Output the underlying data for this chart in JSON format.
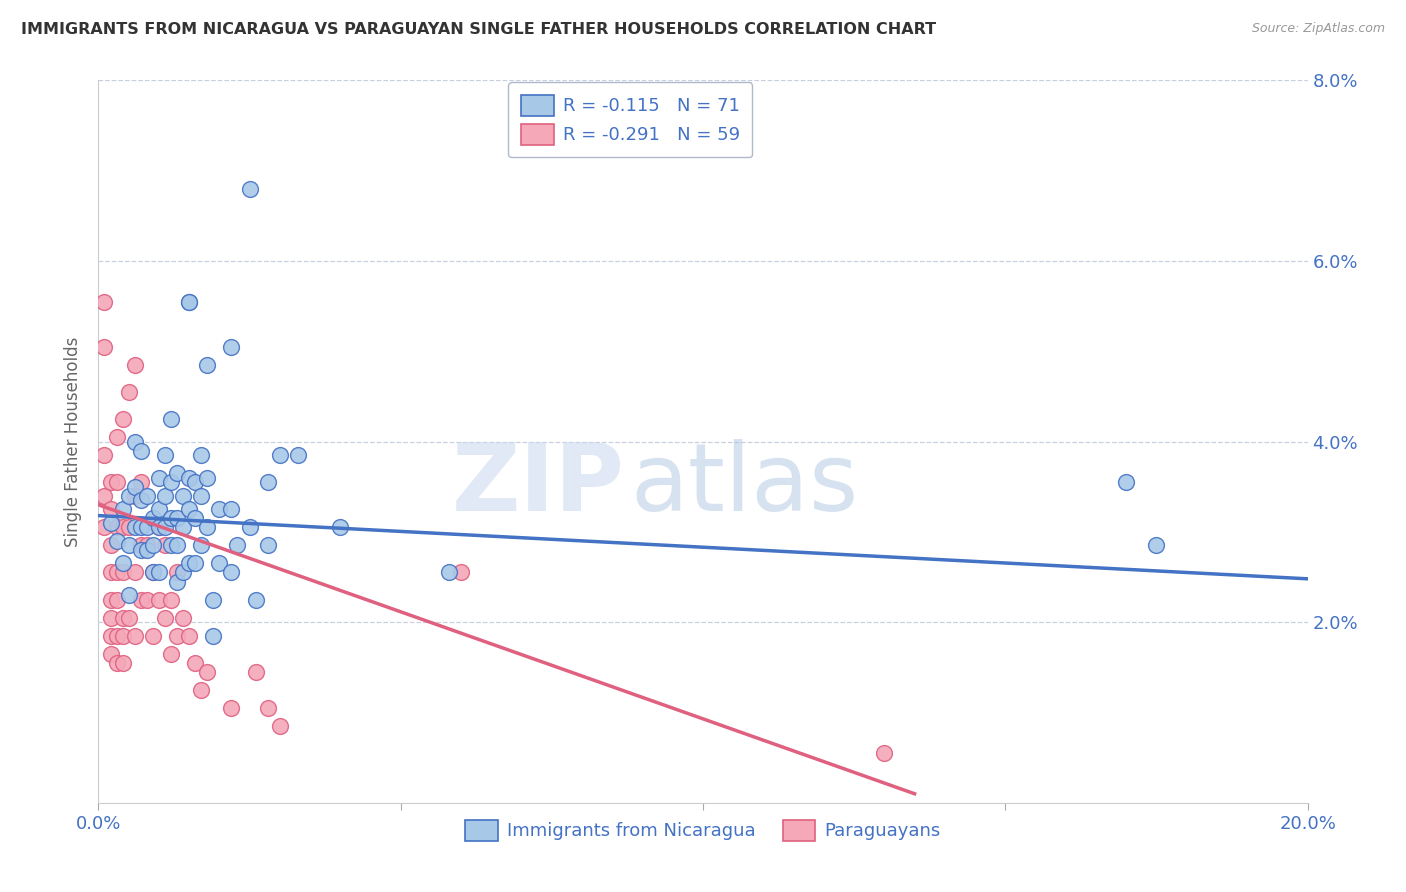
{
  "title": "IMMIGRANTS FROM NICARAGUA VS PARAGUAYAN SINGLE FATHER HOUSEHOLDS CORRELATION CHART",
  "source": "Source: ZipAtlas.com",
  "ylabel": "Single Father Households",
  "x_min": 0.0,
  "x_max": 0.2,
  "y_min": 0.0,
  "y_max": 0.08,
  "x_ticks": [
    0.0,
    0.05,
    0.1,
    0.15,
    0.2
  ],
  "x_tick_labels": [
    "0.0%",
    "",
    "",
    "",
    "20.0%"
  ],
  "y_ticks": [
    0.0,
    0.02,
    0.04,
    0.06,
    0.08
  ],
  "y_tick_labels_right": [
    "",
    "2.0%",
    "4.0%",
    "6.0%",
    "8.0%"
  ],
  "legend_label_blue": "Immigrants from Nicaragua",
  "legend_label_pink": "Paraguayans",
  "legend_R_blue": "R = -0.115",
  "legend_N_blue": "N = 71",
  "legend_R_pink": "R = -0.291",
  "legend_N_pink": "N = 59",
  "color_blue": "#a8c8e8",
  "color_pink": "#f4a8b8",
  "color_blue_line": "#4472c4",
  "color_pink_line": "#e06080",
  "color_axis_labels": "#4472c4",
  "color_grid": "#c8d0e0",
  "watermark_zip": "ZIP",
  "watermark_atlas": "atlas",
  "blue_scatter": [
    [
      0.002,
      0.031
    ],
    [
      0.003,
      0.029
    ],
    [
      0.004,
      0.0325
    ],
    [
      0.004,
      0.0265
    ],
    [
      0.005,
      0.034
    ],
    [
      0.005,
      0.0285
    ],
    [
      0.005,
      0.023
    ],
    [
      0.006,
      0.04
    ],
    [
      0.006,
      0.035
    ],
    [
      0.006,
      0.0305
    ],
    [
      0.007,
      0.039
    ],
    [
      0.007,
      0.0335
    ],
    [
      0.007,
      0.0305
    ],
    [
      0.007,
      0.028
    ],
    [
      0.008,
      0.034
    ],
    [
      0.008,
      0.0305
    ],
    [
      0.008,
      0.028
    ],
    [
      0.009,
      0.0315
    ],
    [
      0.009,
      0.0285
    ],
    [
      0.009,
      0.0255
    ],
    [
      0.01,
      0.036
    ],
    [
      0.01,
      0.0325
    ],
    [
      0.01,
      0.0305
    ],
    [
      0.01,
      0.0255
    ],
    [
      0.011,
      0.0385
    ],
    [
      0.011,
      0.034
    ],
    [
      0.011,
      0.0305
    ],
    [
      0.012,
      0.0425
    ],
    [
      0.012,
      0.0355
    ],
    [
      0.012,
      0.0315
    ],
    [
      0.012,
      0.0285
    ],
    [
      0.013,
      0.0365
    ],
    [
      0.013,
      0.0315
    ],
    [
      0.013,
      0.0285
    ],
    [
      0.013,
      0.0245
    ],
    [
      0.014,
      0.034
    ],
    [
      0.014,
      0.0305
    ],
    [
      0.014,
      0.0255
    ],
    [
      0.015,
      0.0555
    ],
    [
      0.015,
      0.0555
    ],
    [
      0.015,
      0.036
    ],
    [
      0.015,
      0.0325
    ],
    [
      0.015,
      0.0265
    ],
    [
      0.016,
      0.0355
    ],
    [
      0.016,
      0.0315
    ],
    [
      0.016,
      0.0265
    ],
    [
      0.017,
      0.0385
    ],
    [
      0.017,
      0.034
    ],
    [
      0.017,
      0.0285
    ],
    [
      0.018,
      0.0485
    ],
    [
      0.018,
      0.036
    ],
    [
      0.018,
      0.0305
    ],
    [
      0.019,
      0.0225
    ],
    [
      0.019,
      0.0185
    ],
    [
      0.02,
      0.0325
    ],
    [
      0.02,
      0.0265
    ],
    [
      0.022,
      0.0505
    ],
    [
      0.022,
      0.0325
    ],
    [
      0.022,
      0.0255
    ],
    [
      0.023,
      0.0285
    ],
    [
      0.025,
      0.068
    ],
    [
      0.025,
      0.0305
    ],
    [
      0.026,
      0.0225
    ],
    [
      0.028,
      0.0355
    ],
    [
      0.028,
      0.0285
    ],
    [
      0.03,
      0.0385
    ],
    [
      0.033,
      0.0385
    ],
    [
      0.04,
      0.0305
    ],
    [
      0.058,
      0.0255
    ],
    [
      0.17,
      0.0355
    ],
    [
      0.175,
      0.0285
    ]
  ],
  "pink_scatter": [
    [
      0.001,
      0.0555
    ],
    [
      0.001,
      0.0505
    ],
    [
      0.001,
      0.0385
    ],
    [
      0.001,
      0.034
    ],
    [
      0.001,
      0.0305
    ],
    [
      0.002,
      0.0355
    ],
    [
      0.002,
      0.0325
    ],
    [
      0.002,
      0.0285
    ],
    [
      0.002,
      0.0255
    ],
    [
      0.002,
      0.0225
    ],
    [
      0.002,
      0.0205
    ],
    [
      0.002,
      0.0185
    ],
    [
      0.002,
      0.0165
    ],
    [
      0.003,
      0.0405
    ],
    [
      0.003,
      0.0355
    ],
    [
      0.003,
      0.0305
    ],
    [
      0.003,
      0.0255
    ],
    [
      0.003,
      0.0225
    ],
    [
      0.003,
      0.0185
    ],
    [
      0.003,
      0.0155
    ],
    [
      0.004,
      0.0425
    ],
    [
      0.004,
      0.0305
    ],
    [
      0.004,
      0.0255
    ],
    [
      0.004,
      0.0205
    ],
    [
      0.004,
      0.0185
    ],
    [
      0.004,
      0.0155
    ],
    [
      0.005,
      0.0455
    ],
    [
      0.005,
      0.0305
    ],
    [
      0.005,
      0.0205
    ],
    [
      0.006,
      0.0485
    ],
    [
      0.006,
      0.034
    ],
    [
      0.006,
      0.0255
    ],
    [
      0.006,
      0.0185
    ],
    [
      0.007,
      0.0355
    ],
    [
      0.007,
      0.0285
    ],
    [
      0.007,
      0.0225
    ],
    [
      0.008,
      0.0285
    ],
    [
      0.008,
      0.0225
    ],
    [
      0.009,
      0.0255
    ],
    [
      0.009,
      0.0185
    ],
    [
      0.01,
      0.0305
    ],
    [
      0.01,
      0.0225
    ],
    [
      0.011,
      0.0285
    ],
    [
      0.011,
      0.0205
    ],
    [
      0.012,
      0.0225
    ],
    [
      0.012,
      0.0165
    ],
    [
      0.013,
      0.0255
    ],
    [
      0.013,
      0.0185
    ],
    [
      0.014,
      0.0205
    ],
    [
      0.015,
      0.0185
    ],
    [
      0.016,
      0.0155
    ],
    [
      0.017,
      0.0125
    ],
    [
      0.018,
      0.0145
    ],
    [
      0.022,
      0.0105
    ],
    [
      0.026,
      0.0145
    ],
    [
      0.028,
      0.0105
    ],
    [
      0.03,
      0.0085
    ],
    [
      0.06,
      0.0255
    ],
    [
      0.13,
      0.0055
    ]
  ],
  "blue_trendline_x": [
    0.0,
    0.2
  ],
  "blue_trendline_y": [
    0.0318,
    0.0248
  ],
  "pink_trendline_x": [
    0.0,
    0.135
  ],
  "pink_trendline_y": [
    0.033,
    0.001
  ]
}
